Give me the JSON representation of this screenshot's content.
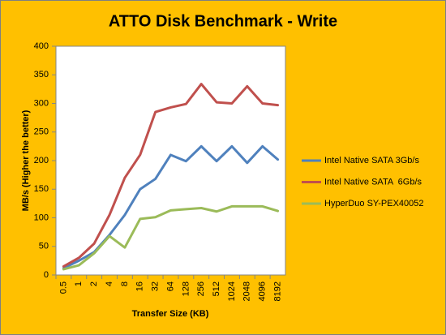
{
  "chart_data": {
    "type": "line",
    "title": "ATTO Disk Benchmark - Write",
    "x_label": "Transfer Size (KB)",
    "y_label": "MB/s (Higher the better)",
    "categories": [
      "0.5",
      "1",
      "2",
      "4",
      "8",
      "16",
      "32",
      "64",
      "128",
      "256",
      "512",
      "1024",
      "2048",
      "4096",
      "8192"
    ],
    "series": [
      {
        "name": "Intel Native SATA 3Gb/s",
        "color": "#4f81bd",
        "values": [
          12,
          25,
          40,
          70,
          105,
          150,
          168,
          210,
          199,
          225,
          199,
          225,
          196,
          225,
          202
        ]
      },
      {
        "name": "Intel Native SATA  6Gb/s",
        "color": "#c0504d",
        "values": [
          15,
          30,
          55,
          105,
          170,
          210,
          285,
          293,
          299,
          334,
          302,
          300,
          330,
          300,
          297
        ]
      },
      {
        "name": "HyperDuo SY-PEX40052",
        "color": "#9bbb59",
        "values": [
          10,
          17,
          38,
          68,
          48,
          98,
          101,
          113,
          115,
          117,
          111,
          120,
          120,
          120,
          112
        ]
      }
    ],
    "ylim": [
      0,
      400
    ],
    "yticks": [
      0,
      50,
      100,
      150,
      200,
      250,
      300,
      350,
      400
    ],
    "grid": false,
    "legend": "right"
  }
}
